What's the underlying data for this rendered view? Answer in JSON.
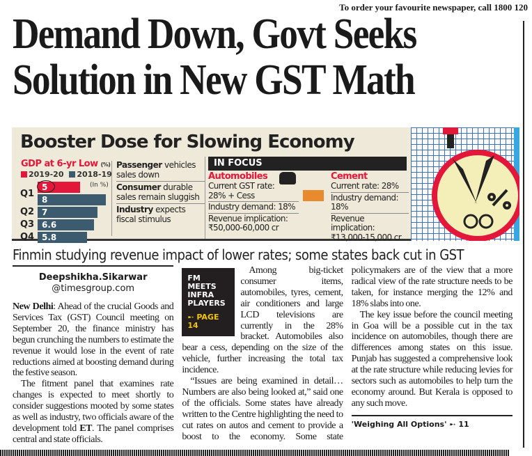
{
  "top_banner": "To order your favourite newspaper, call 1800 120",
  "headline": [
    "Demand Down, Govt Seeks",
    "Solution in New GST Math"
  ],
  "infographic": {
    "title": "Booster Dose for Slowing Economy",
    "gdp_title": "GDP at 6-yr Low",
    "gdp_unit": "(%)",
    "legend": [
      "2019-20",
      "2018-19"
    ],
    "unit_note": "(In %)",
    "colors": {
      "y2019": "#e3173a",
      "y2018": "#3d5b6e"
    },
    "bars": [
      {
        "q": "Q1",
        "v2019": "5",
        "v2018": "8"
      },
      {
        "q": "Q2",
        "v2018": "7"
      },
      {
        "q": "Q3",
        "v2018": "6.6"
      },
      {
        "q": "Q4",
        "v2018": "5.8"
      }
    ],
    "points": [
      {
        "b": "Passenger",
        "t": " vehicles sales down"
      },
      {
        "b": "Consumer",
        "t": " durable sales remain sluggish"
      },
      {
        "b": "Industry",
        "t": " expects fiscal stimulus"
      }
    ],
    "focus_label": "IN FOCUS",
    "auto": {
      "h": "Automobiles",
      "rate": "Current GST rate: 28% + Cess",
      "demand": "Industry demand: 18%",
      "rev_label": "Revenue implication:",
      "rev": "₹50,000-60,000 cr"
    },
    "cement": {
      "h": "Cement",
      "rate": "Current rate: 28%",
      "demand": "Industry demand: 18%",
      "rev_label": "Revenue implication:",
      "rev": "₹13,000-15,000 cr"
    }
  },
  "subhead": "Finmin studying revenue impact of lower rates; some states back cut in GST",
  "byline": {
    "name": "Deepshikha.Sikarwar",
    "email": "@timesgroup.com"
  },
  "body": {
    "dateline": "New Delhi",
    "p1": ": Ahead of the crucial Goods and Services Tax (GST) Council meeting on September 20, the finance ministry has begun crunching the numbers to estimate the revenue it would lose in the event of rate reductions aimed at boosting demand during the festive season.",
    "p2": "The fitment panel that examines rate changes is expected to meet shortly to consider suggestions mooted by some states as well as industry, two officials aware of the development",
    "p2b_pre": "told ",
    "p2b_et": "ET",
    "p2b": ". The panel comprises central and state officials.",
    "p3": "Among big-ticket consumer items, automobiles, tyres, cement, air conditioners and large LCD televisions are currently in the 28% bracket. Automobiles also bear a cess, depending on the size of the vehicle, further increasing the total tax incidence.",
    "p4": "“Issues are being examined in detail… Numbers are also being looked at,” said one of the officials. Some states have already written to the Centre highlighting the need to cut rates on autos and cement to provide a boost to the economy. Some state policymakers are of the view that a more radical view of the rate structure needs to be taken, for instance merging the 12% and 18% slabs into one.",
    "p5": "The key issue before the council meeting in Goa will be a possible cut in the tax incidence on automobiles, though there are differences among states on this issue. Punjab has suggested a comprehensive look at the rate structure while reducing levies for sectors such as automobiles to help turn the economy around. But Kerala is opposed to any such move."
  },
  "promo": {
    "lines": [
      "FM MEETS",
      "INFRA",
      "PLAYERS"
    ],
    "page": "➸ PAGE 14"
  },
  "reference": "'Weighing All Options' ➸ 11"
}
